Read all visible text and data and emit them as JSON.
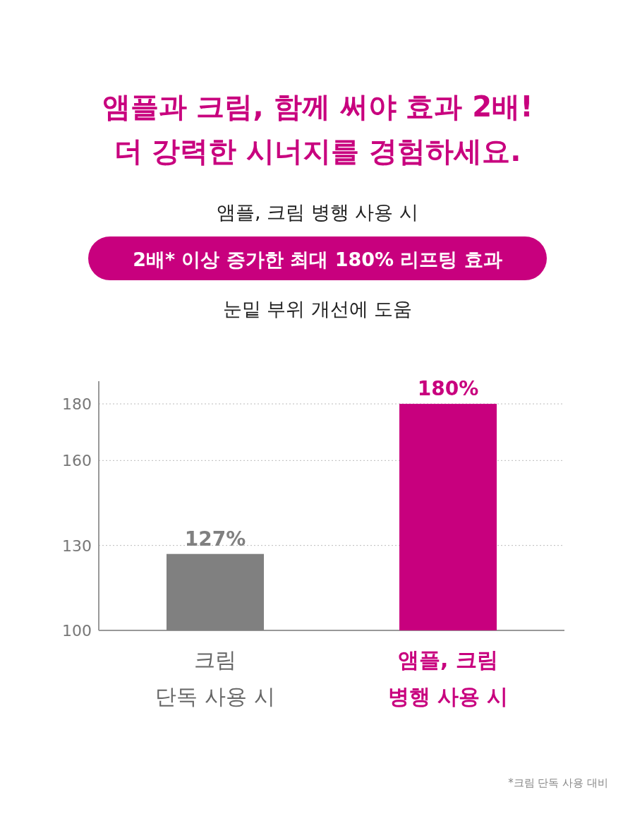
{
  "chart_data": {
    "type": "bar",
    "title": "앰플과 크림, 함께 써야 효과 2배! 더 강력한 시너지를 경험하세요.",
    "subtitle": "앰플, 크림 병행 사용 시",
    "annotations": [
      "2배* 이상 증가한 최대 180% 리프팅 효과",
      "눈밑 부위 개선에 도움",
      "*크림 단독 사용 대비"
    ],
    "categories": [
      "크림 단독 사용 시",
      "앰플, 크림 병행 사용 시"
    ],
    "values": [
      127,
      180
    ],
    "colors": [
      "#808080",
      "#c8007e"
    ],
    "value_labels": [
      "127%",
      "180%"
    ],
    "ylim": [
      100,
      188
    ],
    "yticks": [
      100,
      130,
      160,
      180
    ],
    "grid": "y"
  }
}
